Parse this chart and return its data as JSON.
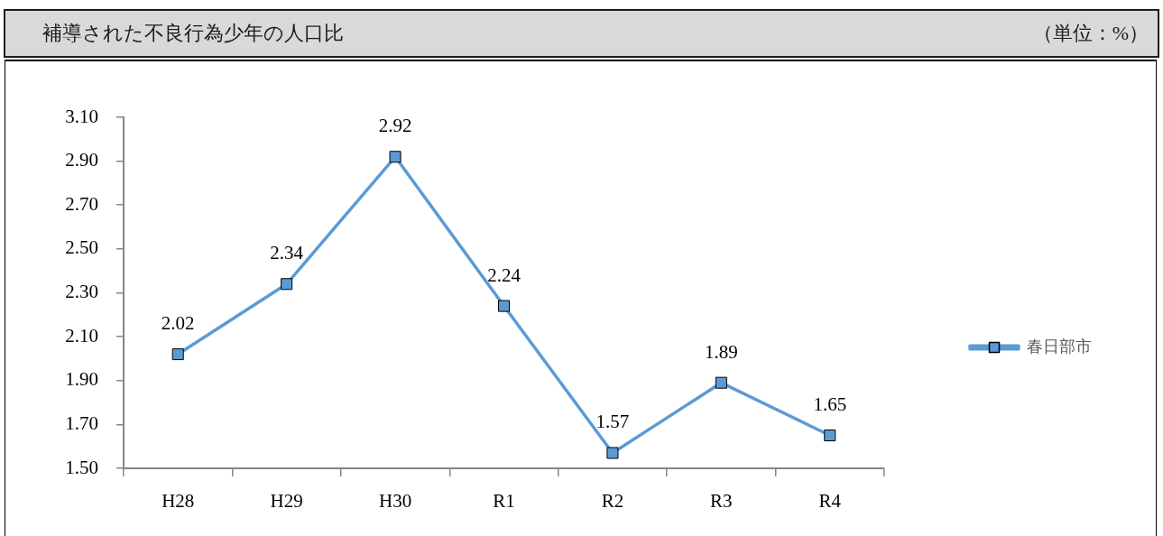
{
  "chart_data": {
    "type": "line",
    "title": "補導された不良行為少年の人口比",
    "annotations": [
      "（単位：%）"
    ],
    "categories": [
      "H28",
      "H29",
      "H30",
      "R1",
      "R2",
      "R3",
      "R4"
    ],
    "series": [
      {
        "name": "春日部市",
        "color": "#5b9bd5",
        "values": [
          2.02,
          2.34,
          2.92,
          2.24,
          1.57,
          1.89,
          1.65
        ]
      }
    ],
    "ylim": [
      1.5,
      3.1
    ],
    "yticks": [
      {
        "value": 1.5,
        "label": "1.50"
      },
      {
        "value": 1.7,
        "label": "1.70"
      },
      {
        "value": 1.9,
        "label": "1.90"
      },
      {
        "value": 2.1,
        "label": "2.10"
      },
      {
        "value": 2.3,
        "label": "2.30"
      },
      {
        "value": 2.5,
        "label": "2.50"
      },
      {
        "value": 2.7,
        "label": "2.70"
      },
      {
        "value": 2.9,
        "label": "2.90"
      },
      {
        "value": 3.1,
        "label": "3.10"
      }
    ],
    "data_labels": true,
    "legend": "right",
    "marker": "square",
    "line_style": "solid"
  }
}
